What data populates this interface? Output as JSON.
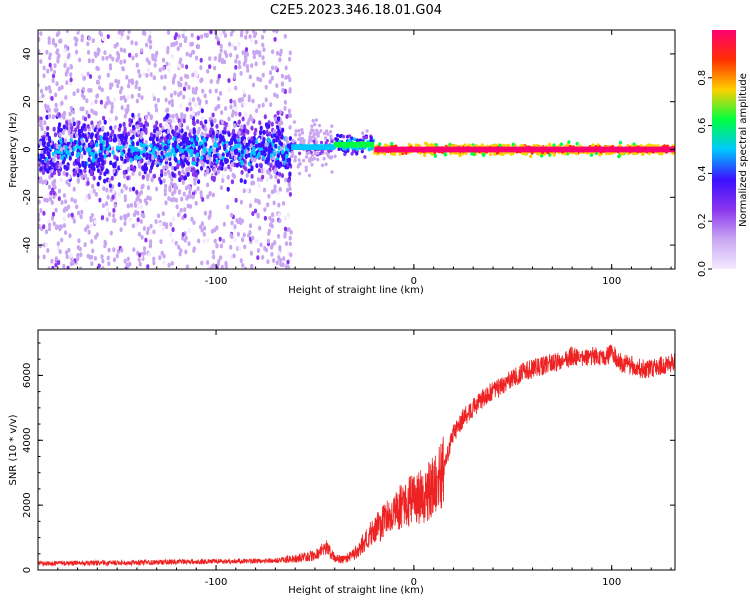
{
  "title": "C2E5.2023.346.18.01.G04",
  "colors": {
    "snr_line": "#ee2222",
    "axis": "#000000",
    "colormap": [
      "#f4eaff",
      "#c9a6f2",
      "#8a35ee",
      "#3a10ff",
      "#00c8ff",
      "#00ff40",
      "#ffd000",
      "#ff3000",
      "#ff0070"
    ]
  },
  "chart_data": [
    {
      "type": "heatmap",
      "title": "",
      "xlabel": "Height of straight line (km)",
      "ylabel": "Frequency (Hz)",
      "xlim": [
        -190,
        132
      ],
      "ylim": [
        -50,
        50
      ],
      "x_ticks": [
        -100,
        0,
        100
      ],
      "y_ticks": [
        -40,
        -20,
        0,
        20,
        40
      ],
      "grid": false,
      "colorbar": {
        "label": "Normalized spectral amplitude",
        "range": [
          0,
          1
        ],
        "ticks": [
          "0.0",
          "0.2",
          "0.4",
          "0.6",
          "0.8"
        ],
        "placement": "right"
      },
      "segments": [
        {
          "x_from": -190,
          "x_to": -62,
          "center_hz": 0,
          "spread_hz": 50,
          "amplitude": 0.2,
          "description_level": "scattered"
        },
        {
          "x_from": -62,
          "x_to": -40,
          "center_hz": 1,
          "spread_hz": 10,
          "amplitude": 0.45
        },
        {
          "x_from": -40,
          "x_to": -20,
          "center_hz": 2,
          "spread_hz": 4,
          "amplitude": 0.65
        },
        {
          "x_from": -20,
          "x_to": 132,
          "center_hz": 0,
          "spread_hz": 2,
          "amplitude": 0.95
        }
      ]
    },
    {
      "type": "line",
      "title": "",
      "xlabel": "Height of straight line (km)",
      "ylabel": "SNR (10 * v/v)",
      "xlim": [
        -190,
        132
      ],
      "ylim": [
        0,
        7400
      ],
      "x_ticks": [
        -100,
        0,
        100
      ],
      "y_ticks": [
        0,
        2000,
        4000,
        6000
      ],
      "grid": false,
      "series": [
        {
          "x": [
            -190,
            -170,
            -150,
            -130,
            -110,
            -90,
            -70,
            -60,
            -50,
            -44,
            -40,
            -35,
            -30,
            -25,
            -20,
            -15,
            -10,
            -5,
            0,
            5,
            10,
            15,
            18,
            20,
            25,
            30,
            35,
            40,
            45,
            50,
            55,
            60,
            65,
            70,
            75,
            80,
            85,
            90,
            95,
            100,
            105,
            110,
            115,
            120,
            125,
            132
          ],
          "values": [
            200,
            210,
            220,
            240,
            260,
            270,
            290,
            350,
            450,
            700,
            350,
            330,
            500,
            900,
            1200,
            1500,
            1800,
            2000,
            2200,
            2300,
            2600,
            3000,
            3800,
            4200,
            4700,
            5000,
            5300,
            5500,
            5700,
            5900,
            6100,
            6200,
            6300,
            6400,
            6400,
            6600,
            6500,
            6600,
            6500,
            6700,
            6400,
            6300,
            6200,
            6200,
            6300,
            6400
          ]
        }
      ]
    }
  ]
}
